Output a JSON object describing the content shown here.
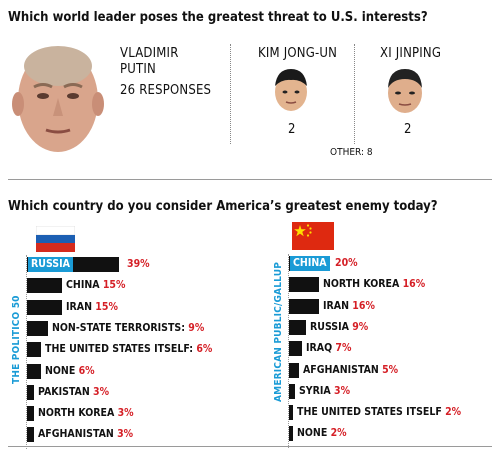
{
  "q1": {
    "question": "Which world leader poses the greatest threat to U.S. interests?",
    "leaders": [
      {
        "name_line1": "VLADIMIR",
        "name_line2": "PUTIN",
        "count": "26 RESPONSES",
        "icon": "putin-portrait-icon"
      },
      {
        "name_line1": "KIM JONG-UN",
        "count": "2",
        "icon": "kim-portrait-icon"
      },
      {
        "name_line1": "XI JINPING",
        "count": "2",
        "icon": "xi-portrait-icon"
      }
    ],
    "other": "OTHER: 8"
  },
  "q2": {
    "question": "Which country do you consider America’s greatest enemy today?",
    "colors": {
      "bar": "#111111",
      "highlight": "#1a9bd6",
      "pct": "#d51f26"
    },
    "chart_data": [
      {
        "type": "bar",
        "orientation": "horizontal",
        "group_label": "THE POLITICO 50",
        "flag": "russia-flag-icon",
        "categories": [
          "RUSSIA",
          "CHINA",
          "IRAN",
          "NON-STATE TERRORISTS:",
          "THE UNITED STATES ITSELF:",
          "NONE",
          "PAKISTAN",
          "NORTH KOREA",
          "AFGHANISTAN"
        ],
        "values": [
          39,
          15,
          15,
          9,
          6,
          6,
          3,
          3,
          3
        ],
        "value_labels": [
          "39%",
          "15%",
          "15%",
          "9%",
          "6%",
          "6%",
          "3%",
          "3%",
          "3%"
        ]
      },
      {
        "type": "bar",
        "orientation": "horizontal",
        "group_label": "AMERICAN PUBLIC/GALLUP",
        "flag": "china-flag-icon",
        "categories": [
          "CHINA",
          "NORTH KOREA",
          "IRAN",
          "RUSSIA",
          "IRAQ",
          "AFGHANISTAN",
          "SYRIA",
          "THE UNITED STATES ITSELF",
          "NONE"
        ],
        "values": [
          20,
          16,
          16,
          9,
          7,
          5,
          3,
          2,
          2
        ],
        "value_labels": [
          "20%",
          "16%",
          "16%",
          "9%",
          "7%",
          "5%",
          "3%",
          "2%",
          "2%"
        ]
      }
    ]
  }
}
